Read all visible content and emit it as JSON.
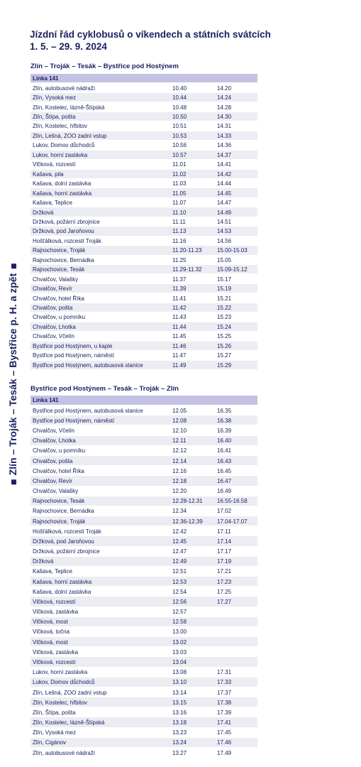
{
  "title": "Jízdní řád cyklobusů o víkendech a státních svátcích",
  "dates": "1. 5. – 29. 9. 2024",
  "side_label": "Zlín – Troják – Tesák – Bystřice p. H. a zpět",
  "sections": [
    {
      "heading": "Zlín – Troják – Tesák – Bystřice pod Hostýnem",
      "line": "Linka 141",
      "rows": [
        [
          "Zlín, autobusové nádraží",
          "10.40",
          "14.20"
        ],
        [
          "Zlín, Vysoká mez",
          "10.44",
          "14.24"
        ],
        [
          "Zlín, Kostelec, lázně-Štípská",
          "10.48",
          "14.28"
        ],
        [
          "Zlín, Štípa, pošta",
          "10.50",
          "14.30"
        ],
        [
          "Zlín, Kostelec, hřbitov",
          "10.51",
          "14.31"
        ],
        [
          "Zlín, Lešná, ZOO zadní vstup",
          "10.53",
          "14.33"
        ],
        [
          "Lukov, Domov důchodců",
          "10.56",
          "14.36"
        ],
        [
          "Lukov, horní zastávka",
          "10.57",
          "14.37"
        ],
        [
          "Vlčková, rozcestí",
          "11.01",
          "14.41"
        ],
        [
          "Kašava, pila",
          "11.02",
          "14.42"
        ],
        [
          "Kašava, dolní zastávka",
          "11.03",
          "14.44"
        ],
        [
          "Kašava, horní zastávka",
          "11.05",
          "14.45"
        ],
        [
          "Kašava, Teplice",
          "11.07",
          "14.47"
        ],
        [
          "Držková",
          "11.10",
          "14.49"
        ],
        [
          "Držková, požární zbrojnice",
          "11.11",
          "14.51"
        ],
        [
          "Držková, pod Jaroňovou",
          "11.13",
          "14.53"
        ],
        [
          "Hošťálková, rozcestí Troják",
          "11.16",
          "14.56"
        ],
        [
          "Rajnochovice, Troják",
          "11.20-11.23",
          "15.00-15.03"
        ],
        [
          "Rajnochovice, Bernádka",
          "11.25",
          "15.05"
        ],
        [
          "Rajnochovice, Tesák",
          "11.29-11.32",
          "15.09-15.12"
        ],
        [
          "Chvalčov, Valašky",
          "11.37",
          "15.17"
        ],
        [
          "Chvalčov, Revír",
          "11.39",
          "15.19"
        ],
        [
          "Chvalčov, hotel Říka",
          "11.41",
          "15.21"
        ],
        [
          "Chvalčov, pošta",
          "11.42",
          "15.22"
        ],
        [
          "Chvalčov, u pomníku",
          "11.43",
          "15.23"
        ],
        [
          "Chvalčov, Lhotka",
          "11.44",
          "15.24"
        ],
        [
          "Chvalčov, Včelín",
          "11.45",
          "15.25"
        ],
        [
          "Bystřice pod Hostýnem, u kaple",
          "11.46",
          "15.26"
        ],
        [
          "Bystřice pod Hostýnem, náměstí",
          "11.47",
          "15.27"
        ],
        [
          "Bystřice pod Hostýnem, autobusová stanice",
          "11.49",
          "15.29"
        ]
      ]
    },
    {
      "heading": "Bystřice pod Hostýnem – Tesák – Troják – Zlín",
      "line": "Linka 141",
      "rows": [
        [
          "Bystřice pod Hostýnem, autobusová stanice",
          "12.05",
          "16.35"
        ],
        [
          "Bystřice pod Hostýnem, náměstí",
          "12.08",
          "16.38"
        ],
        [
          "Chvalčov, Včelín",
          "12.10",
          "16.39"
        ],
        [
          "Chvalčov, Lhotka",
          "12.11",
          "16.40"
        ],
        [
          "Chvalčov, u pomníku",
          "12.12",
          "16.41"
        ],
        [
          "Chvalčov, pošta",
          "12.14",
          "16.43"
        ],
        [
          "Chvalčov, hotel Říka",
          "12.16",
          "16.45"
        ],
        [
          "Chvalčov, Revír",
          "12.18",
          "16.47"
        ],
        [
          "Chvalčov, Valašky",
          "12.20",
          "16.49"
        ],
        [
          "Rajnochovice, Tesák",
          "12.28-12.31",
          "16.55-16.58"
        ],
        [
          "Rajnochovice, Bernádka",
          "12.34",
          "17.02"
        ],
        [
          "Rajnochovice, Troják",
          "12.36-12.39",
          "17.04-17.07"
        ],
        [
          "Hošťálková, rozcestí Troják",
          "12.42",
          "17.11"
        ],
        [
          "Držková, pod Jaroňovou",
          "12.45",
          "17.14"
        ],
        [
          "Držková, požární zbrojnice",
          "12.47",
          "17.17"
        ],
        [
          "Držková",
          "12.49",
          "17.19"
        ],
        [
          "Kašava, Teplice",
          "12.51",
          "17.21"
        ],
        [
          "Kašava, horní zastávka",
          "12.53",
          "17.23"
        ],
        [
          "Kašava, dolní zastávka",
          "12.54",
          "17.25"
        ],
        [
          "Vlčková, rozcestí",
          "12.56",
          "17.27"
        ],
        [
          "Vlčková, zastávka",
          "12.57"
        ],
        [
          "Vlčková, most",
          "12.58"
        ],
        [
          "Vlčková, točna",
          "13.00"
        ],
        [
          "Vlčková, most",
          "13.02"
        ],
        [
          "Vlčková, zastávka",
          "13.03"
        ],
        [
          "Vlčková, rozcestí",
          "13.04"
        ],
        [
          "Lukov, horní zastávka",
          "13.08",
          "17.31"
        ],
        [
          "Lukov, Domov důchodců",
          "13.10",
          "17.33"
        ],
        [
          "Zlín, Lešná, ZOO zadní vstup",
          "13.14",
          "17.37"
        ],
        [
          "Zlín, Kostelec, hřbitov",
          "13.15",
          "17.38"
        ],
        [
          "Zlín, Štípa, pošta",
          "13.16",
          "17.39"
        ],
        [
          "Zlín, Kostelec, lázně-Štípská",
          "13.18",
          "17.41"
        ],
        [
          "Zlín, Vysoká mez",
          "13.23",
          "17.45"
        ],
        [
          "Zlín, Cigánov",
          "13.24",
          "17.46"
        ],
        [
          "Zlín, autobusové nádraží",
          "13.27",
          "17.49"
        ]
      ]
    }
  ]
}
